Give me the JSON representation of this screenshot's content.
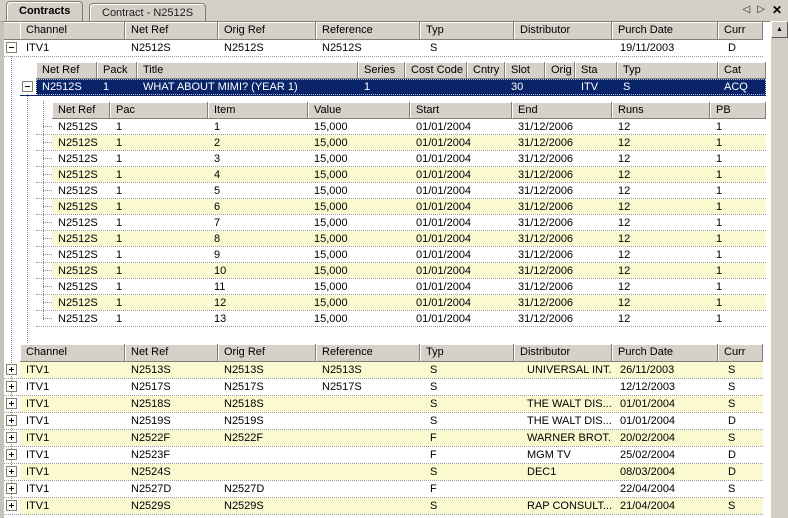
{
  "colors": {
    "chrome": "#D4D0C8",
    "header_bg": "#D5D1C9",
    "row_alt": "#FAF9D0",
    "selection": "#0A246A",
    "selection_text": "#FFFFFF"
  },
  "tabs": {
    "items": [
      {
        "label": "Contracts",
        "active": true
      },
      {
        "label": "Contract - N2512S",
        "active": false
      }
    ]
  },
  "window_controls": {
    "prev_icon": "◁",
    "next_icon": "▷",
    "close_icon": "✕"
  },
  "scrollbar": {
    "up_icon": "▲"
  },
  "contracts_grid": {
    "columns": [
      "Channel",
      "Net Ref",
      "Orig Ref",
      "Reference",
      "Typ",
      "Distributor",
      "Purch Date",
      "Curr"
    ],
    "first_row": [
      "ITV1",
      "N2512S",
      "N2512S",
      "N2512S",
      "S",
      "",
      "19/11/2003",
      "D"
    ],
    "rows_below": [
      [
        "ITV1",
        "N2513S",
        "N2513S",
        "N2513S",
        "S",
        "UNIVERSAL INT...",
        "26/11/2003",
        "S"
      ],
      [
        "ITV1",
        "N2517S",
        "N2517S",
        "N2517S",
        "S",
        "",
        "12/12/2003",
        "S"
      ],
      [
        "ITV1",
        "N2518S",
        "N2518S",
        "",
        "S",
        "THE WALT DIS...",
        "01/01/2004",
        "S"
      ],
      [
        "ITV1",
        "N2519S",
        "N2519S",
        "",
        "S",
        "THE WALT DIS...",
        "01/01/2004",
        "D"
      ],
      [
        "ITV1",
        "N2522F",
        "N2522F",
        "",
        "F",
        "WARNER BROT...",
        "20/02/2004",
        "S"
      ],
      [
        "ITV1",
        "N2523F",
        "",
        "",
        "F",
        "MGM TV",
        "25/02/2004",
        "D"
      ],
      [
        "ITV1",
        "N2524S",
        "",
        "",
        "S",
        "DEC1",
        "08/03/2004",
        "D"
      ],
      [
        "ITV1",
        "N2527D",
        "N2527D",
        "",
        "F",
        "",
        "22/04/2004",
        "S"
      ],
      [
        "ITV1",
        "N2529S",
        "N2529S",
        "",
        "S",
        "RAP CONSULT...",
        "21/04/2004",
        "S"
      ]
    ]
  },
  "package_grid": {
    "columns": [
      "Net Ref",
      "Pack",
      "Title",
      "Series",
      "Cost Code",
      "Cntry",
      "Slot",
      "Orig",
      "Sta",
      "Typ",
      "Cat"
    ],
    "selected_row": [
      "N2512S",
      "1",
      "WHAT ABOUT MIMI? (YEAR 1)",
      "1",
      "",
      "",
      "30",
      "",
      "ITV",
      "S",
      "ACQ"
    ]
  },
  "item_grid": {
    "columns": [
      "Net Ref",
      "Pac",
      "Item",
      "Value",
      "Start",
      "End",
      "Runs",
      "PB"
    ],
    "rows": [
      [
        "N2512S",
        "1",
        "1",
        "15,000",
        "01/01/2004",
        "31/12/2006",
        "12",
        "1"
      ],
      [
        "N2512S",
        "1",
        "2",
        "15,000",
        "01/01/2004",
        "31/12/2006",
        "12",
        "1"
      ],
      [
        "N2512S",
        "1",
        "3",
        "15,000",
        "01/01/2004",
        "31/12/2006",
        "12",
        "1"
      ],
      [
        "N2512S",
        "1",
        "4",
        "15,000",
        "01/01/2004",
        "31/12/2006",
        "12",
        "1"
      ],
      [
        "N2512S",
        "1",
        "5",
        "15,000",
        "01/01/2004",
        "31/12/2006",
        "12",
        "1"
      ],
      [
        "N2512S",
        "1",
        "6",
        "15,000",
        "01/01/2004",
        "31/12/2006",
        "12",
        "1"
      ],
      [
        "N2512S",
        "1",
        "7",
        "15,000",
        "01/01/2004",
        "31/12/2006",
        "12",
        "1"
      ],
      [
        "N2512S",
        "1",
        "8",
        "15,000",
        "01/01/2004",
        "31/12/2006",
        "12",
        "1"
      ],
      [
        "N2512S",
        "1",
        "9",
        "15,000",
        "01/01/2004",
        "31/12/2006",
        "12",
        "1"
      ],
      [
        "N2512S",
        "1",
        "10",
        "15,000",
        "01/01/2004",
        "31/12/2006",
        "12",
        "1"
      ],
      [
        "N2512S",
        "1",
        "11",
        "15,000",
        "01/01/2004",
        "31/12/2006",
        "12",
        "1"
      ],
      [
        "N2512S",
        "1",
        "12",
        "15,000",
        "01/01/2004",
        "31/12/2006",
        "12",
        "1"
      ],
      [
        "N2512S",
        "1",
        "13",
        "15,000",
        "01/01/2004",
        "31/12/2006",
        "12",
        "1"
      ]
    ]
  }
}
